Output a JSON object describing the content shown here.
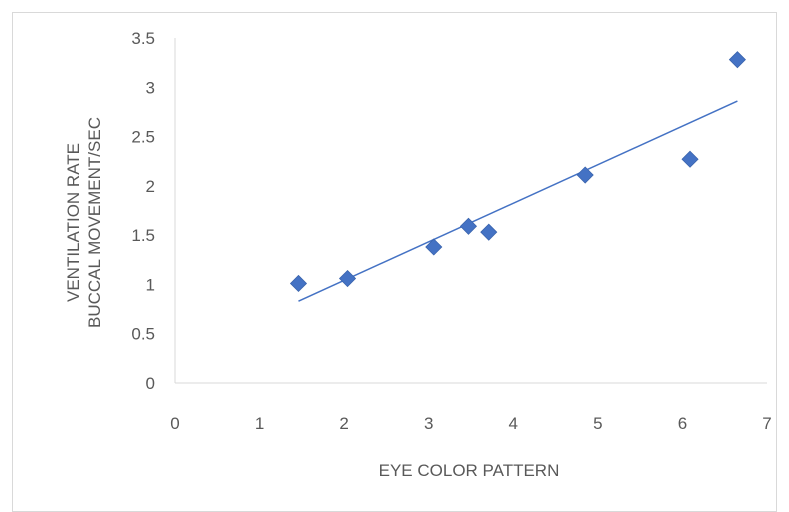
{
  "chart_data": {
    "type": "scatter",
    "title": "",
    "xlabel": "EYE COLOR PATTERN",
    "ylabel_lines": [
      "VENTILATION RATE",
      "BUCCAL MOVEMENT/SEC"
    ],
    "xlim": [
      0,
      7
    ],
    "ylim": [
      0,
      3.5
    ],
    "x_ticks": [
      {
        "value": 0,
        "label": "0"
      },
      {
        "value": 1,
        "label": "1"
      },
      {
        "value": 2,
        "label": "2"
      },
      {
        "value": 3,
        "label": "3"
      },
      {
        "value": 4,
        "label": "4"
      },
      {
        "value": 5,
        "label": "5"
      },
      {
        "value": 6,
        "label": "6"
      },
      {
        "value": 7,
        "label": "7"
      }
    ],
    "y_ticks": [
      {
        "value": 0,
        "label": "0"
      },
      {
        "value": 0.5,
        "label": "0.5"
      },
      {
        "value": 1,
        "label": "1"
      },
      {
        "value": 1.5,
        "label": "1.5"
      },
      {
        "value": 2,
        "label": "2"
      },
      {
        "value": 2.5,
        "label": "2.5"
      },
      {
        "value": 3,
        "label": "3"
      },
      {
        "value": 3.5,
        "label": "3.5"
      }
    ],
    "grid": false,
    "legend": "none",
    "series": [
      {
        "marker": "diamond",
        "color": "#4472c4",
        "points": [
          {
            "x": 1.46,
            "y": 1.01
          },
          {
            "x": 2.04,
            "y": 1.06
          },
          {
            "x": 3.06,
            "y": 1.38
          },
          {
            "x": 3.47,
            "y": 1.59
          },
          {
            "x": 3.71,
            "y": 1.53
          },
          {
            "x": 4.85,
            "y": 2.11
          },
          {
            "x": 6.09,
            "y": 2.27
          },
          {
            "x": 6.65,
            "y": 3.28
          }
        ]
      }
    ],
    "trendline": {
      "type": "linear",
      "color": "#4472c4",
      "from": {
        "x": 1.46,
        "y": 0.83
      },
      "to": {
        "x": 6.65,
        "y": 2.86
      }
    }
  }
}
